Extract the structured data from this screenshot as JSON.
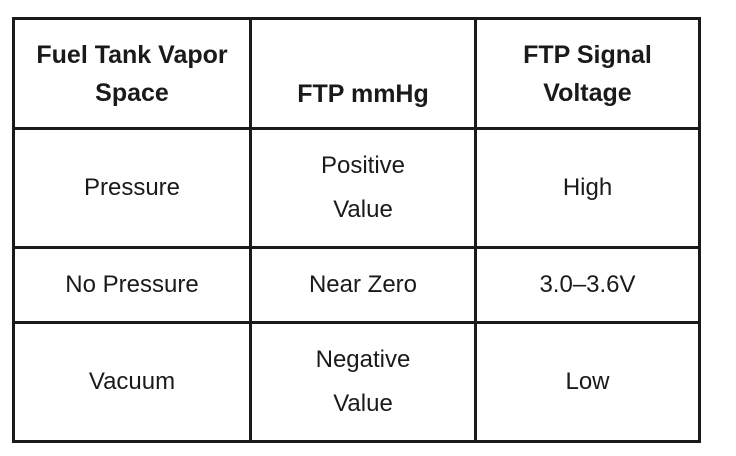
{
  "table": {
    "headers": [
      "Fuel Tank Vapor Space",
      "FTP mmHg",
      "FTP Signal Voltage"
    ],
    "rows": [
      [
        "Pressure",
        "Positive Value",
        "High"
      ],
      [
        "No Pressure",
        "Near Zero",
        "3.0–3.6V"
      ],
      [
        "Vacuum",
        "Negative Value",
        "Low"
      ]
    ]
  }
}
